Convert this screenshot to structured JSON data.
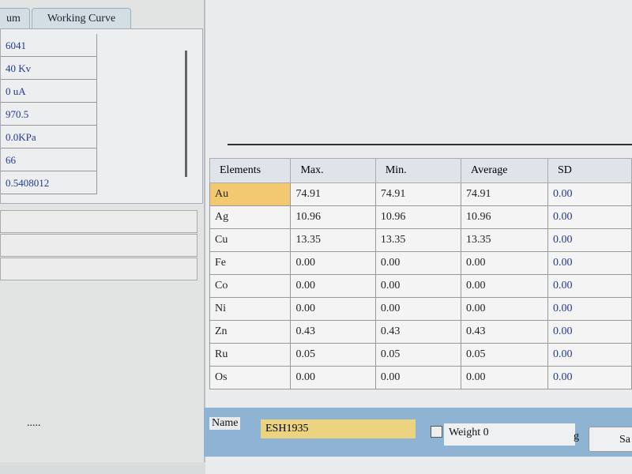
{
  "tabs": [
    {
      "label": "um"
    },
    {
      "label": "Working Curve"
    }
  ],
  "params": [
    "6041",
    "40 Kv",
    "0 uA",
    "970.5",
    "0.0KPa",
    "66",
    "0.5408012"
  ],
  "dots": ".....",
  "table": {
    "headers": [
      "Elements",
      "Max.",
      "Min.",
      "Average",
      "SD"
    ],
    "rows": [
      [
        "Au",
        "74.91",
        "74.91",
        "74.91",
        "0.00"
      ],
      [
        "Ag",
        "10.96",
        "10.96",
        "10.96",
        "0.00"
      ],
      [
        "Cu",
        "13.35",
        "13.35",
        "13.35",
        "0.00"
      ],
      [
        "Fe",
        "0.00",
        "0.00",
        "0.00",
        "0.00"
      ],
      [
        "Co",
        "0.00",
        "0.00",
        "0.00",
        "0.00"
      ],
      [
        "Ni",
        "0.00",
        "0.00",
        "0.00",
        "0.00"
      ],
      [
        "Zn",
        "0.43",
        "0.43",
        "0.43",
        "0.00"
      ],
      [
        "Ru",
        "0.05",
        "0.05",
        "0.05",
        "0.00"
      ],
      [
        "Os",
        "0.00",
        "0.00",
        "0.00",
        "0.00"
      ]
    ],
    "selected": "Au"
  },
  "bottom": {
    "name_label": "Name",
    "name_value": "ESH1935",
    "weight_label": "Weight",
    "weight_value": "0",
    "unit": "g",
    "save_label": "Sa"
  }
}
